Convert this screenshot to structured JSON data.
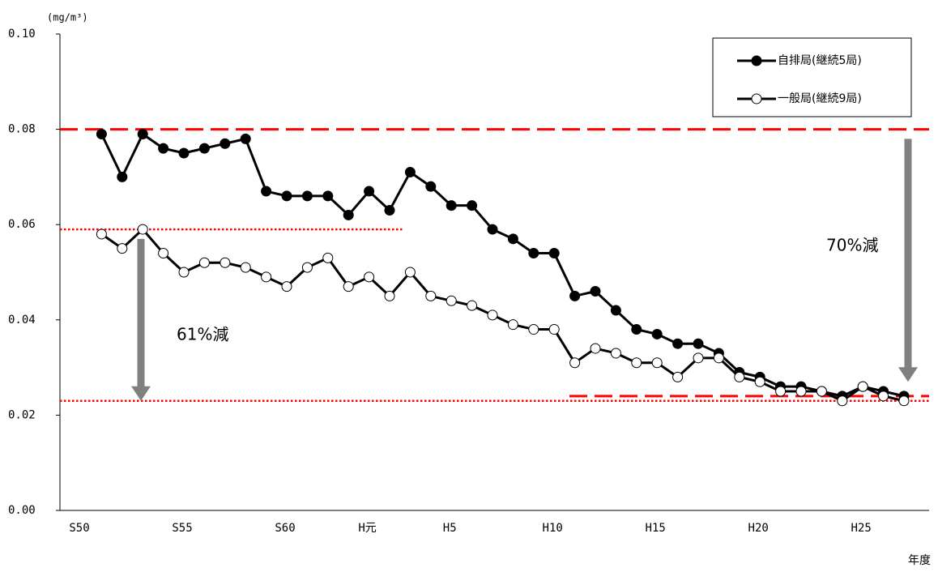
{
  "chart_data": {
    "type": "line",
    "y_axis_label": "(mg/m³)",
    "x_axis_label": "年度",
    "categories": [
      "S50",
      null,
      null,
      null,
      null,
      "S55",
      null,
      null,
      null,
      null,
      "S60",
      null,
      null,
      null,
      "H元",
      null,
      null,
      null,
      "H5",
      null,
      null,
      null,
      null,
      "H10",
      null,
      null,
      null,
      null,
      "H15",
      null,
      null,
      null,
      null,
      "H20",
      null,
      null,
      null,
      null,
      "H25",
      null,
      null
    ],
    "series": [
      {
        "name": "自排局(継続5局)",
        "color": "#000000",
        "marker": "filled",
        "values": [
          null,
          0.079,
          0.07,
          0.079,
          0.076,
          0.075,
          0.076,
          0.077,
          0.078,
          0.067,
          0.066,
          0.066,
          0.066,
          0.062,
          0.067,
          0.063,
          0.071,
          0.068,
          0.064,
          0.064,
          0.059,
          0.057,
          0.054,
          0.054,
          0.045,
          0.046,
          0.042,
          0.038,
          0.037,
          0.035,
          0.035,
          0.033,
          0.029,
          0.028,
          0.026,
          0.026,
          0.025,
          0.024,
          0.026,
          0.025,
          0.024
        ]
      },
      {
        "name": "一般局(継続9局)",
        "color": "#000000",
        "marker": "open",
        "values": [
          null,
          0.058,
          0.055,
          0.059,
          0.054,
          0.05,
          0.052,
          0.052,
          0.051,
          0.049,
          0.047,
          0.051,
          0.053,
          0.047,
          0.049,
          0.045,
          0.05,
          0.045,
          0.044,
          0.043,
          0.041,
          0.039,
          0.038,
          0.038,
          0.031,
          0.034,
          0.033,
          0.031,
          0.031,
          0.028,
          0.032,
          0.032,
          0.028,
          0.027,
          0.025,
          0.025,
          0.025,
          0.023,
          0.026,
          0.024,
          0.023
        ]
      }
    ],
    "ylim": [
      0,
      0.1
    ],
    "yticks": [
      {
        "value": 0,
        "label": "0.00"
      },
      {
        "value": 0.02,
        "label": "0.02"
      },
      {
        "value": 0.04,
        "label": "0.04"
      },
      {
        "value": 0.06,
        "label": "0.06"
      },
      {
        "value": 0.08,
        "label": "0.08"
      },
      {
        "value": 0.1,
        "label": "0.10"
      }
    ],
    "grid": false,
    "legend_position": "upper right",
    "reference_lines": [
      {
        "value": 0.08,
        "style": "dashed",
        "color": "#ff0000"
      },
      {
        "value": 0.059,
        "style": "dotted",
        "color": "#ff0000"
      },
      {
        "value": 0.023,
        "style": "dotted",
        "color": "#ff0000"
      },
      {
        "value": 0.024,
        "style": "dashed",
        "color": "#ff0000"
      }
    ],
    "arrows": [
      {
        "from": 0.057,
        "to": 0.023,
        "color": "#808080"
      },
      {
        "from": 0.078,
        "to": 0.027,
        "color": "#808080"
      }
    ],
    "annotations": [
      "61%減",
      "70%減"
    ]
  }
}
